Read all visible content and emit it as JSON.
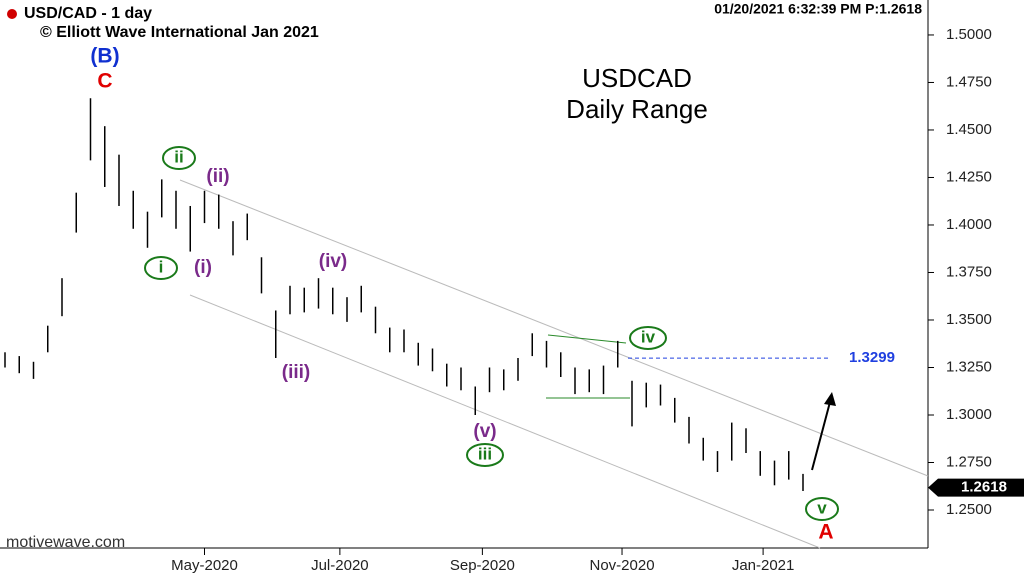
{
  "header": {
    "symbol": "USD/CAD - 1 day",
    "copyright": "© Elliott Wave International Jan 2021",
    "timestamp": "01/20/2021 6:32:39 PM  P:1.2618",
    "watermark": "motivewave.com"
  },
  "chart_data": {
    "type": "ohlc",
    "title": "USDCAD",
    "subtitle": "Daily Range",
    "color": "#000000",
    "categories": [
      null,
      null,
      null,
      null,
      null,
      null,
      null,
      null,
      null,
      null,
      null,
      null,
      null,
      null,
      null,
      null,
      null,
      null,
      null,
      null,
      null,
      null,
      null,
      null,
      null,
      null,
      null,
      null,
      null,
      null,
      null,
      null,
      null,
      null,
      null,
      null,
      null,
      null,
      null,
      null,
      null,
      null,
      null,
      null,
      null,
      null,
      null,
      null,
      null,
      null,
      null,
      null,
      null,
      null,
      null,
      null,
      null
    ],
    "high": [
      1.333,
      1.331,
      1.328,
      1.347,
      1.372,
      1.417,
      1.4667,
      1.452,
      1.437,
      1.418,
      1.407,
      1.424,
      1.418,
      1.41,
      1.418,
      1.416,
      1.402,
      1.406,
      1.383,
      1.355,
      1.368,
      1.367,
      1.372,
      1.367,
      1.362,
      1.368,
      1.357,
      1.346,
      1.345,
      1.338,
      1.335,
      1.327,
      1.325,
      1.315,
      1.325,
      1.324,
      1.33,
      1.343,
      1.339,
      1.333,
      1.325,
      1.324,
      1.326,
      1.339,
      1.318,
      1.317,
      1.316,
      1.309,
      1.299,
      1.288,
      1.281,
      1.296,
      1.293,
      1.281,
      1.276,
      1.281,
      1.269
    ],
    "low": [
      1.325,
      1.322,
      1.319,
      1.333,
      1.352,
      1.396,
      1.434,
      1.42,
      1.41,
      1.398,
      1.388,
      1.404,
      1.398,
      1.386,
      1.401,
      1.398,
      1.384,
      1.392,
      1.364,
      1.33,
      1.353,
      1.354,
      1.356,
      1.353,
      1.349,
      1.354,
      1.343,
      1.333,
      1.333,
      1.326,
      1.323,
      1.315,
      1.313,
      1.3,
      1.312,
      1.313,
      1.318,
      1.331,
      1.325,
      1.32,
      1.311,
      1.312,
      1.311,
      1.325,
      1.294,
      1.304,
      1.305,
      1.296,
      1.285,
      1.276,
      1.27,
      1.276,
      1.28,
      1.268,
      1.263,
      1.266,
      1.26
    ],
    "ylim": [
      1.23,
      1.5184
    ],
    "yticks": [
      {
        "value": 1.25,
        "label": "1.2500"
      },
      {
        "value": 1.275,
        "label": "1.2750"
      },
      {
        "value": 1.3,
        "label": "1.3000"
      },
      {
        "value": 1.325,
        "label": "1.3250"
      },
      {
        "value": 1.35,
        "label": "1.3500"
      },
      {
        "value": 1.375,
        "label": "1.3750"
      },
      {
        "value": 1.4,
        "label": "1.4000"
      },
      {
        "value": 1.425,
        "label": "1.4250"
      },
      {
        "value": 1.45,
        "label": "1.4500"
      },
      {
        "value": 1.475,
        "label": "1.4750"
      },
      {
        "value": 1.5,
        "label": "1.5000"
      }
    ],
    "xticks": [
      {
        "value": 14,
        "label": "May-2020"
      },
      {
        "value": 23.5,
        "label": "Jul-2020"
      },
      {
        "value": 33.5,
        "label": "Sep-2020"
      },
      {
        "value": 43.3,
        "label": "Nov-2020"
      },
      {
        "value": 53.2,
        "label": "Jan-2021"
      }
    ],
    "target_level": 1.3299,
    "last_price": {
      "value": 1.2618,
      "label": "1.2618"
    },
    "annotations": [
      "(B)",
      "C",
      "ii",
      "(ii)",
      "i",
      "(i)",
      "(iv)",
      "(iii)",
      "(v)",
      "iii",
      "iv",
      "v",
      "A"
    ]
  }
}
